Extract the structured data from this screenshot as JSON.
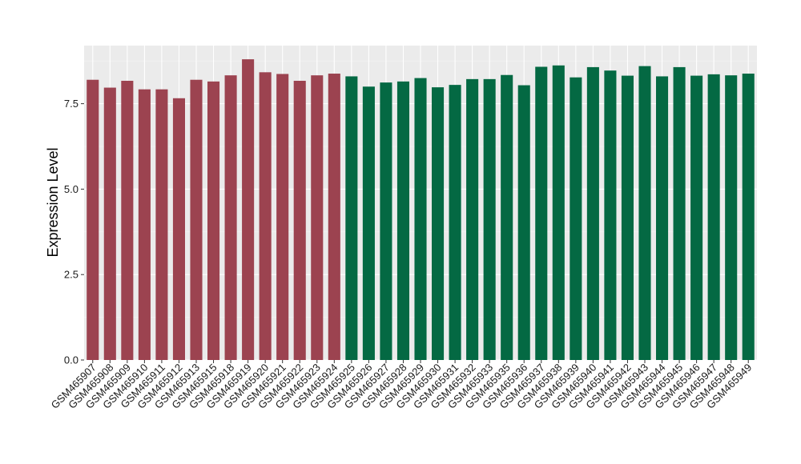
{
  "chart_data": {
    "type": "bar",
    "title": "",
    "xlabel": "",
    "ylabel": "Expression Level",
    "ylim": [
      0,
      9.2
    ],
    "yticks": [
      0.0,
      2.5,
      5.0,
      7.5
    ],
    "ytick_labels": [
      "0.0",
      "2.5",
      "5.0",
      "7.5"
    ],
    "grid": true,
    "background": "#ebebeb",
    "group_colors": [
      "#9c4350",
      "#046943"
    ],
    "categories": [
      "GSM465907",
      "GSM465908",
      "GSM465909",
      "GSM465910",
      "GSM465911",
      "GSM465912",
      "GSM465913",
      "GSM465915",
      "GSM465918",
      "GSM465919",
      "GSM465920",
      "GSM465921",
      "GSM465922",
      "GSM465923",
      "GSM465924",
      "GSM465925",
      "GSM465926",
      "GSM465927",
      "GSM465928",
      "GSM465929",
      "GSM465930",
      "GSM465931",
      "GSM465932",
      "GSM465933",
      "GSM465935",
      "GSM465936",
      "GSM465937",
      "GSM465938",
      "GSM465939",
      "GSM465940",
      "GSM465941",
      "GSM465942",
      "GSM465943",
      "GSM465944",
      "GSM465945",
      "GSM465946",
      "GSM465947",
      "GSM465948",
      "GSM465949"
    ],
    "values": [
      8.2,
      7.97,
      8.17,
      7.92,
      7.92,
      7.66,
      8.2,
      8.15,
      8.33,
      8.8,
      8.42,
      8.37,
      8.17,
      8.33,
      8.38,
      8.3,
      8.0,
      8.12,
      8.15,
      8.25,
      7.98,
      8.05,
      8.22,
      8.22,
      8.34,
      8.04,
      8.58,
      8.62,
      8.27,
      8.57,
      8.47,
      8.32,
      8.6,
      8.3,
      8.57,
      8.32,
      8.36,
      8.33,
      8.38
    ],
    "groups": [
      0,
      0,
      0,
      0,
      0,
      0,
      0,
      0,
      0,
      0,
      0,
      0,
      0,
      0,
      0,
      1,
      1,
      1,
      1,
      1,
      1,
      1,
      1,
      1,
      1,
      1,
      1,
      1,
      1,
      1,
      1,
      1,
      1,
      1,
      1,
      1,
      1,
      1,
      1
    ]
  }
}
